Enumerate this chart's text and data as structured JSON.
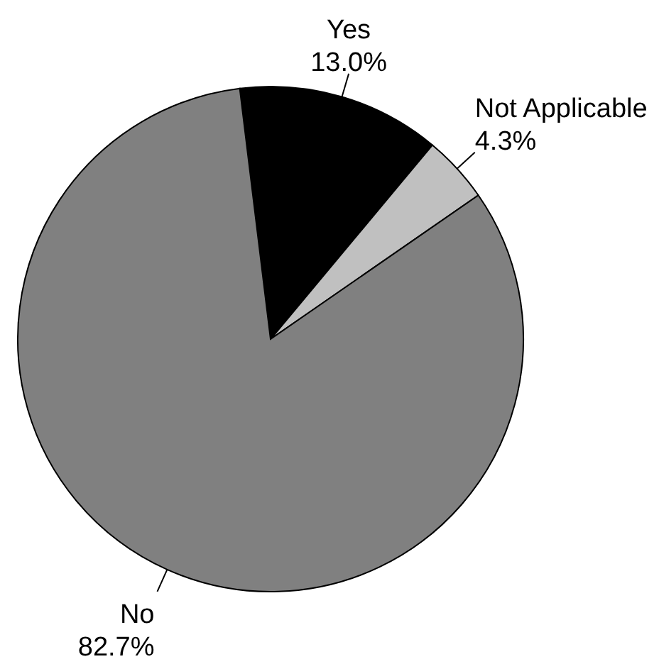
{
  "chart_data": {
    "type": "pie",
    "categories": [
      "Yes",
      "Not Applicable",
      "No"
    ],
    "values": [
      13.0,
      4.3,
      82.7
    ],
    "colors": [
      "#000000",
      "#c0c0c0",
      "#808080"
    ],
    "value_labels": [
      "13.0%",
      "4.3%",
      "82.7%"
    ]
  }
}
